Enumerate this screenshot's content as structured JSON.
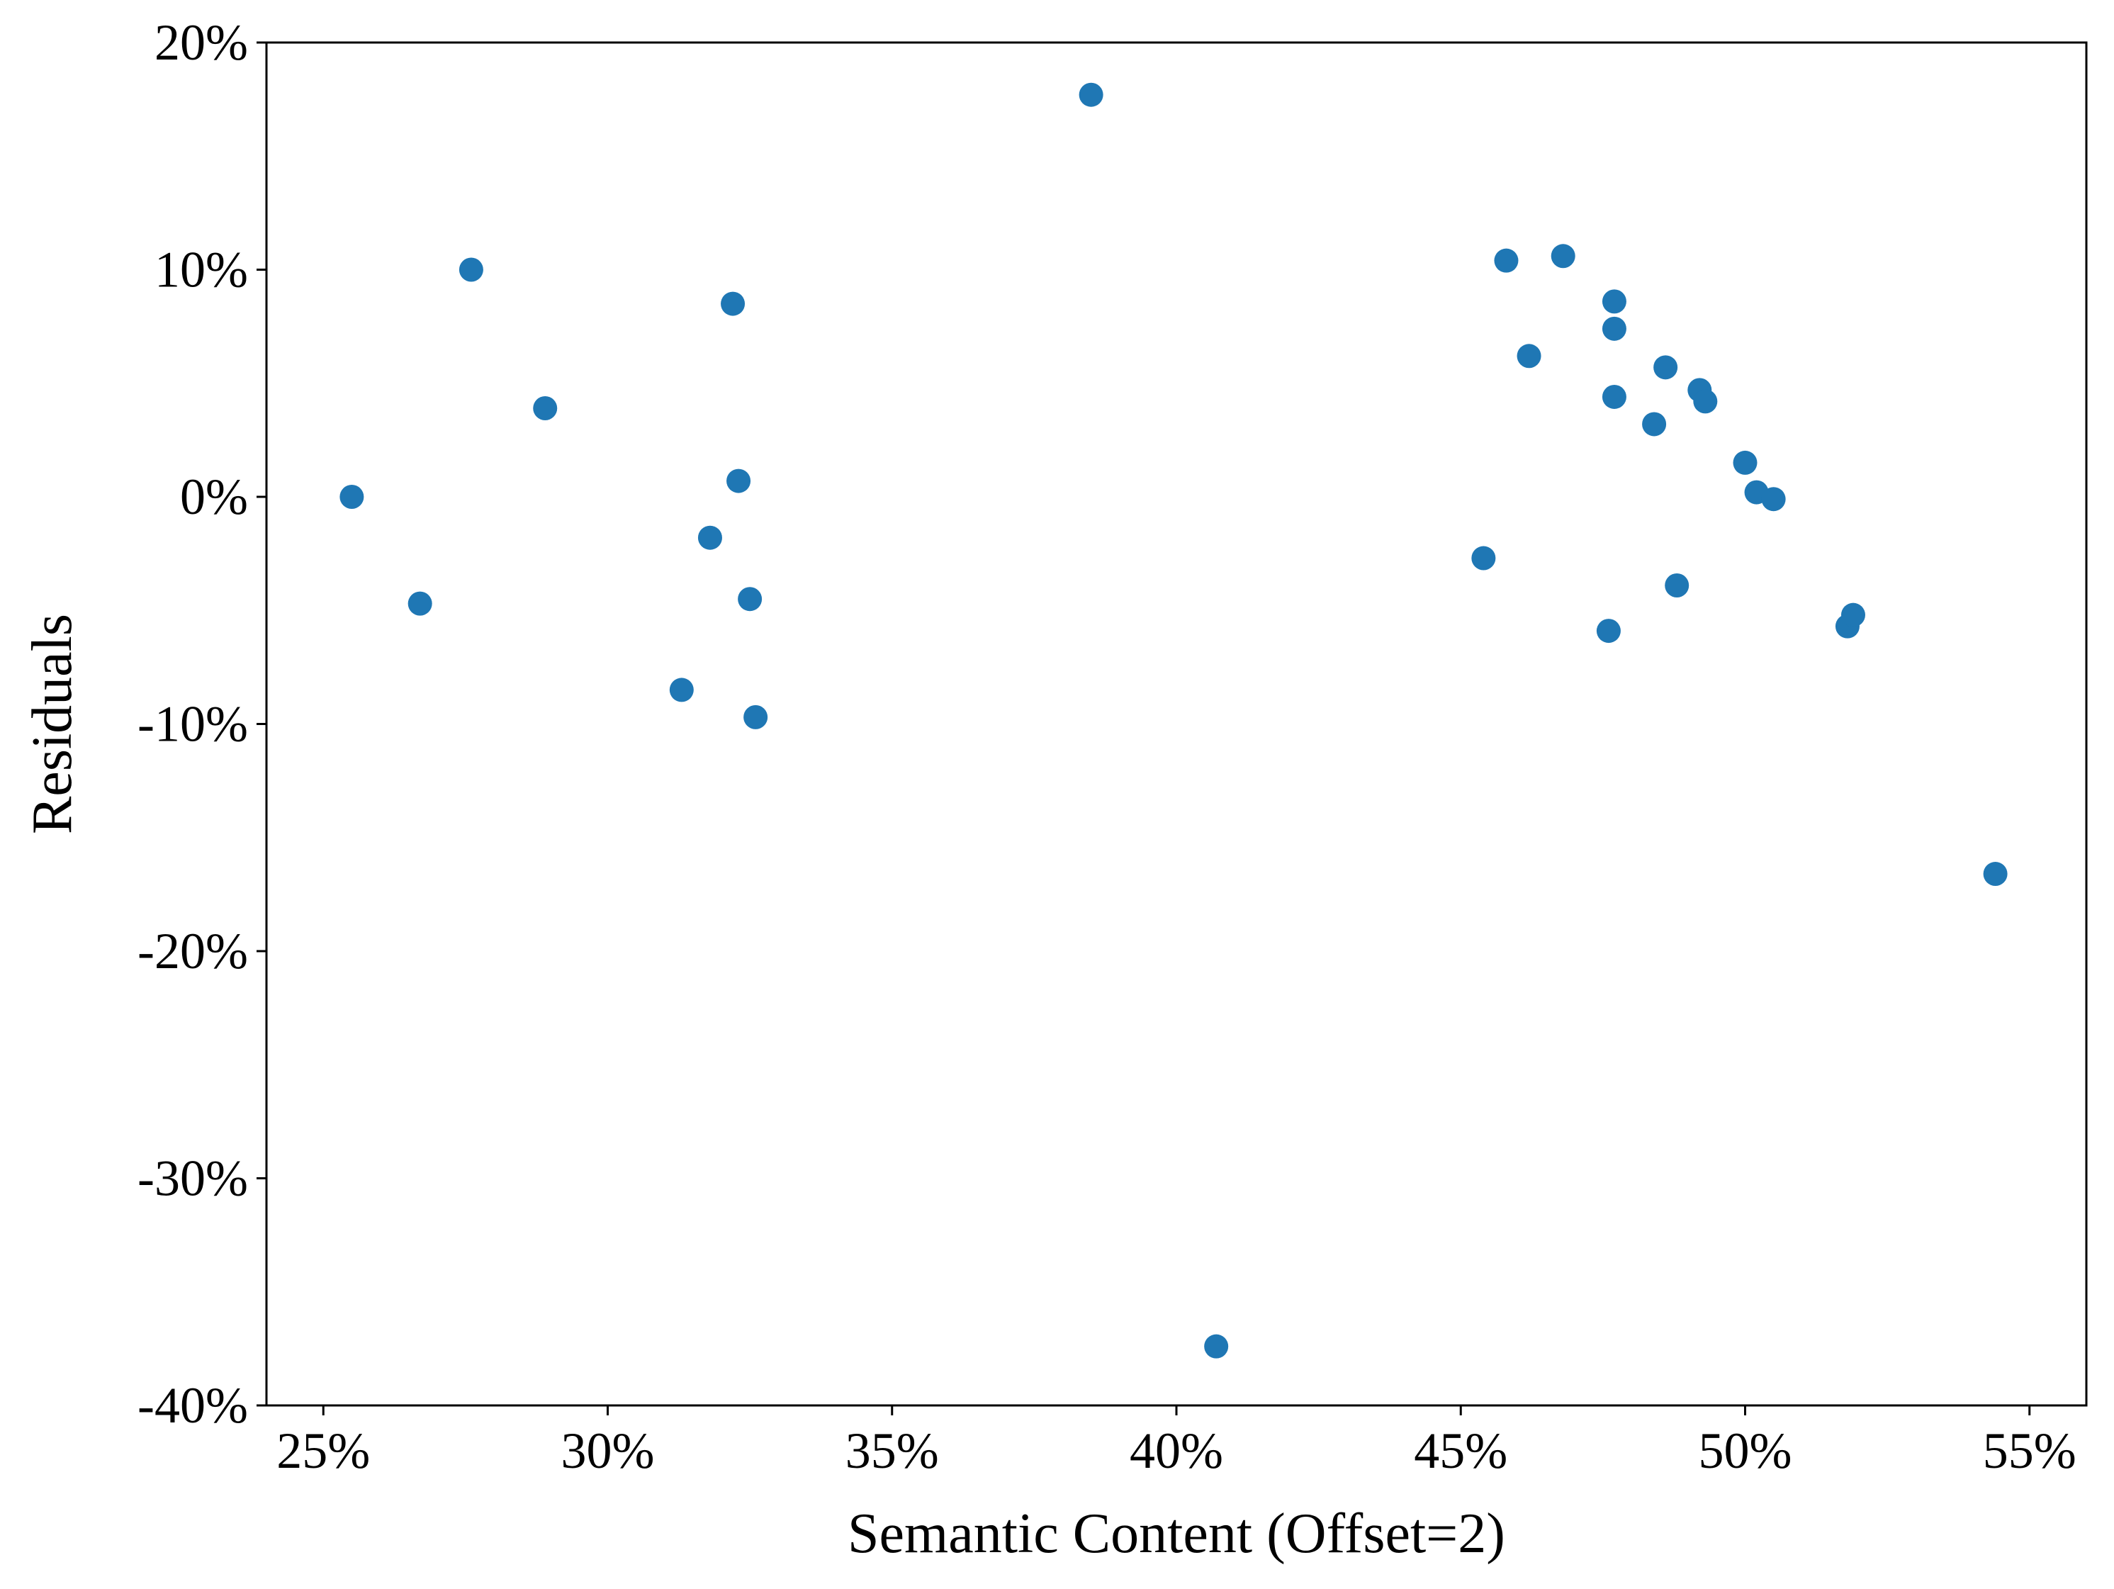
{
  "chart_data": {
    "type": "scatter",
    "title": "",
    "xlabel": "Semantic Content (Offset=2)",
    "ylabel": "Residuals",
    "xlim": [
      0.24,
      0.56
    ],
    "ylim": [
      -0.4,
      0.2
    ],
    "grid": false,
    "marker_color": "#1f77b4",
    "x_ticks": [
      {
        "value": 0.25,
        "label": "25%"
      },
      {
        "value": 0.3,
        "label": "30%"
      },
      {
        "value": 0.35,
        "label": "35%"
      },
      {
        "value": 0.4,
        "label": "40%"
      },
      {
        "value": 0.45,
        "label": "45%"
      },
      {
        "value": 0.5,
        "label": "50%"
      },
      {
        "value": 0.55,
        "label": "55%"
      }
    ],
    "y_ticks": [
      {
        "value": 0.2,
        "label": "20%"
      },
      {
        "value": 0.1,
        "label": "10%"
      },
      {
        "value": 0.0,
        "label": "0%"
      },
      {
        "value": -0.1,
        "label": "-10%"
      },
      {
        "value": -0.2,
        "label": "-20%"
      },
      {
        "value": -0.3,
        "label": "-30%"
      },
      {
        "value": -0.4,
        "label": "-40%"
      }
    ],
    "series": [
      {
        "points": [
          [
            0.255,
            0.0
          ],
          [
            0.267,
            -0.047
          ],
          [
            0.276,
            0.1
          ],
          [
            0.289,
            0.039
          ],
          [
            0.313,
            -0.085
          ],
          [
            0.318,
            -0.018
          ],
          [
            0.322,
            0.085
          ],
          [
            0.323,
            0.007
          ],
          [
            0.325,
            -0.045
          ],
          [
            0.326,
            -0.097
          ],
          [
            0.385,
            0.177
          ],
          [
            0.407,
            -0.374
          ],
          [
            0.454,
            -0.027
          ],
          [
            0.458,
            0.104
          ],
          [
            0.462,
            0.062
          ],
          [
            0.468,
            0.106
          ],
          [
            0.476,
            -0.059
          ],
          [
            0.477,
            0.044
          ],
          [
            0.477,
            0.086
          ],
          [
            0.477,
            0.074
          ],
          [
            0.484,
            0.032
          ],
          [
            0.486,
            0.057
          ],
          [
            0.488,
            -0.039
          ],
          [
            0.492,
            0.047
          ],
          [
            0.493,
            0.042
          ],
          [
            0.5,
            0.015
          ],
          [
            0.502,
            0.002
          ],
          [
            0.505,
            -0.001
          ],
          [
            0.518,
            -0.057
          ],
          [
            0.519,
            -0.052
          ],
          [
            0.544,
            -0.166
          ]
        ]
      }
    ]
  }
}
